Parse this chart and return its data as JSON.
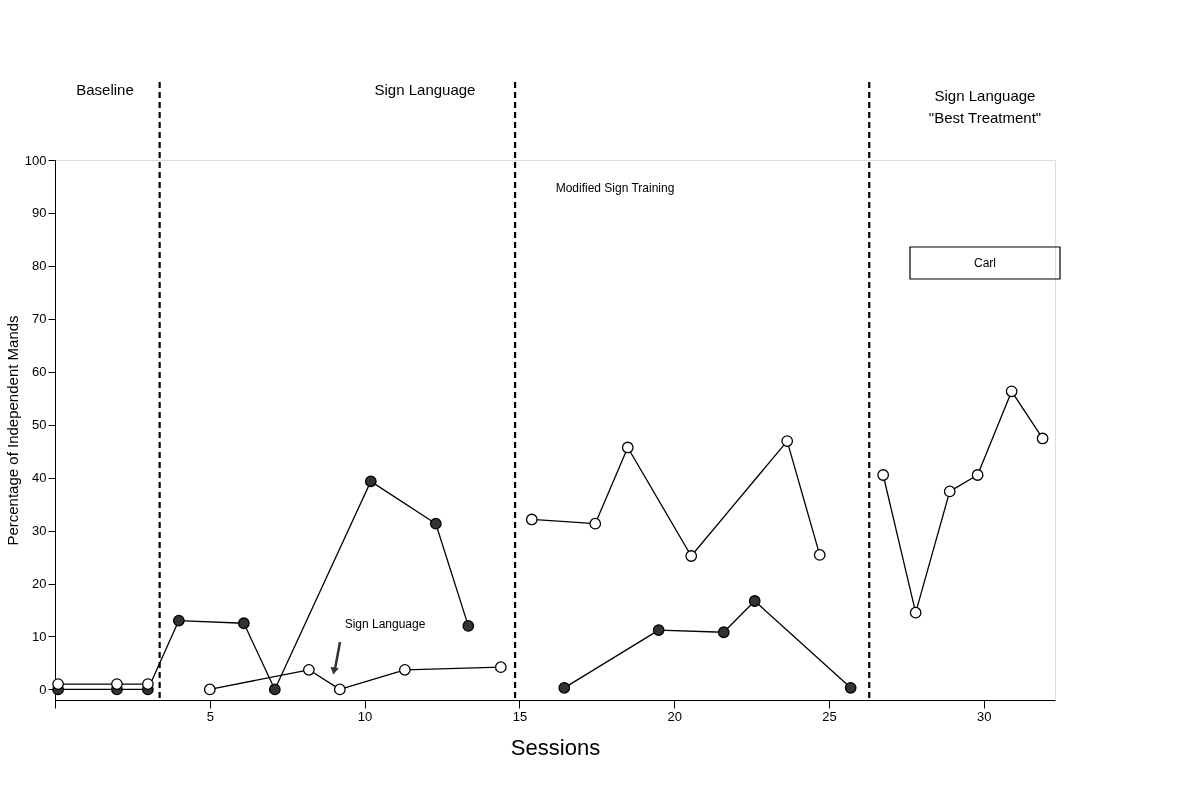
{
  "chart_data": {
    "type": "line",
    "xlabel": "Sessions",
    "ylabel": "Percentage of Independent Mands",
    "xlim": [
      0,
      32.3
    ],
    "ylim": [
      -2,
      100
    ],
    "xticks": [
      {
        "value": 0,
        "label": null
      },
      5,
      10,
      15,
      20,
      25,
      30
    ],
    "yticks": [
      0,
      10,
      20,
      30,
      40,
      50,
      60,
      70,
      80,
      90,
      100
    ],
    "marker": "circle",
    "line_style": "solid",
    "series": [
      {
        "color": "#333333",
        "x": [
          0.1,
          2,
          3,
          4,
          6.1,
          7.1,
          10.2,
          12.3,
          13.35,
          14.5,
          16.45,
          19.5,
          21.6,
          22.6,
          25.7
        ],
        "values": [
          0,
          0,
          0,
          13,
          12.5,
          0,
          39.3,
          31.3,
          12,
          null,
          0.3,
          11.2,
          10.8,
          16.7,
          0.3
        ]
      },
      {
        "color": "#ffffff",
        "x": [
          0.1,
          2,
          3,
          3.5,
          5,
          8.2,
          9.2,
          11.3,
          14.4,
          14.9,
          15.4,
          17.45,
          18.5,
          20.55,
          23.65,
          24.7,
          26.3,
          26.75,
          27.8,
          28.9,
          29.8,
          30.9,
          31.9
        ],
        "values": [
          1,
          1,
          1,
          null,
          0,
          3.7,
          0,
          3.7,
          4.2,
          null,
          32.1,
          31.3,
          45.7,
          25.2,
          46.9,
          25.4,
          null,
          40.5,
          14.5,
          37.4,
          40.5,
          56.3,
          47.4
        ]
      }
    ],
    "ref_lines": [
      {
        "axis": "x",
        "value": 3.38,
        "line_style": "dashed"
      },
      {
        "axis": "x",
        "value": 14.86,
        "line_style": "dashed"
      },
      {
        "axis": "x",
        "value": 26.3,
        "line_style": "dashed"
      }
    ],
    "annotations": [
      "Baseline",
      "Sign Language",
      "Sign Language\n\"Best Treatment\"",
      "Modified Sign Training",
      "Carl",
      "Sign Language"
    ]
  }
}
